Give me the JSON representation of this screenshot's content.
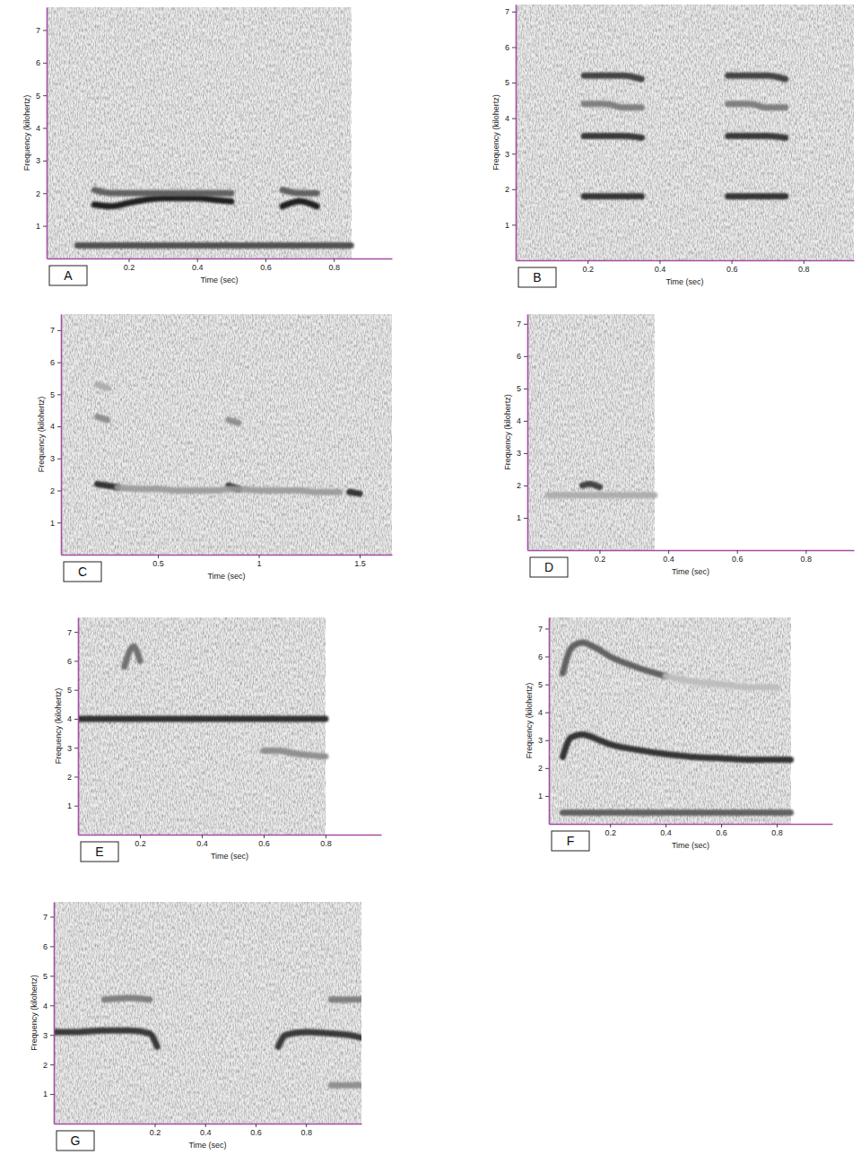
{
  "chart_data": [
    {
      "type": "line",
      "title": "A",
      "x_label": "Time (sec)",
      "y_label": "Frequency (kilohertz)",
      "x": [
        0.05,
        0.1,
        0.15,
        0.2,
        0.25,
        0.3,
        0.35,
        0.4,
        0.45,
        0.5,
        0.55,
        0.6,
        0.65,
        0.7,
        0.75,
        0.8,
        0.85
      ],
      "series": [
        {
          "color": "#111111",
          "values": [
            null,
            1.65,
            1.6,
            1.7,
            1.8,
            1.85,
            1.85,
            1.85,
            1.8,
            1.75,
            null,
            null,
            1.6,
            1.75,
            1.6,
            null,
            null
          ]
        },
        {
          "color": "#555555",
          "values": [
            null,
            2.1,
            2.0,
            2.0,
            2.0,
            2.0,
            2.0,
            2.0,
            2.0,
            2.0,
            null,
            null,
            2.1,
            2.0,
            2.0,
            null,
            null
          ]
        },
        {
          "color": "#444444",
          "values": [
            0.4,
            0.4,
            0.4,
            0.4,
            0.4,
            0.4,
            0.4,
            0.4,
            0.4,
            0.4,
            0.4,
            0.4,
            0.4,
            0.4,
            0.4,
            0.4,
            0.4
          ]
        }
      ],
      "xlim": [
        -0.04,
        0.97
      ],
      "xticks": [
        0.2,
        0.4,
        0.6,
        0.8
      ],
      "ylim": [
        0,
        7.7
      ],
      "yticks": [
        1,
        2,
        3,
        4,
        5,
        6,
        7
      ]
    },
    {
      "type": "line",
      "title": "B",
      "x_label": "Time (sec)",
      "y_label": "Frequency (kilohertz)",
      "x": [
        0.19,
        0.25,
        0.3,
        0.35,
        0.45,
        0.59,
        0.65,
        0.7,
        0.75,
        0.94
      ],
      "series": [
        {
          "color": "#222222",
          "values": [
            1.8,
            1.8,
            1.8,
            1.8,
            null,
            1.8,
            1.8,
            1.8,
            1.8,
            null
          ]
        },
        {
          "color": "#2a2a2a",
          "values": [
            3.5,
            3.5,
            3.5,
            3.45,
            null,
            3.5,
            3.5,
            3.5,
            3.45,
            null
          ]
        },
        {
          "color": "#777777",
          "values": [
            4.4,
            4.4,
            4.3,
            4.3,
            null,
            4.4,
            4.4,
            4.3,
            4.3,
            null
          ]
        },
        {
          "color": "#333333",
          "values": [
            5.2,
            5.2,
            5.2,
            5.1,
            null,
            5.2,
            5.2,
            5.2,
            5.1,
            null
          ]
        }
      ],
      "xlim": [
        0,
        0.94
      ],
      "xticks": [
        0.2,
        0.4,
        0.6,
        0.8
      ],
      "ylim": [
        0,
        7.2
      ],
      "yticks": [
        1,
        2,
        3,
        4,
        5,
        6,
        7
      ]
    },
    {
      "type": "line",
      "title": "C",
      "x_label": "Time (sec)",
      "y_label": "Frequency (kilohertz)",
      "x": [
        0.2,
        0.25,
        0.3,
        0.4,
        0.5,
        0.6,
        0.7,
        0.8,
        0.85,
        0.9,
        1.0,
        1.1,
        1.2,
        1.3,
        1.4,
        1.45,
        1.5,
        1.66
      ],
      "series": [
        {
          "color": "#222222",
          "values": [
            2.2,
            2.15,
            2.1,
            null,
            null,
            null,
            null,
            null,
            2.15,
            2.05,
            null,
            null,
            null,
            null,
            null,
            1.95,
            1.9,
            null
          ]
        },
        {
          "color": "#999999",
          "values": [
            null,
            null,
            2.1,
            2.05,
            2.05,
            2.0,
            2.0,
            2.0,
            2.05,
            2.05,
            2.0,
            2.0,
            2.0,
            1.95,
            1.95,
            null,
            null,
            null
          ]
        },
        {
          "color": "#888888",
          "values": [
            4.3,
            4.2,
            null,
            null,
            null,
            null,
            null,
            null,
            4.2,
            4.1,
            null,
            null,
            null,
            null,
            null,
            null,
            null,
            null
          ]
        },
        {
          "color": "#aaaaaa",
          "values": [
            5.3,
            5.2,
            null,
            null,
            null,
            null,
            null,
            null,
            null,
            null,
            null,
            null,
            null,
            null,
            null,
            null,
            null,
            null
          ]
        }
      ],
      "xlim": [
        0.02,
        1.66
      ],
      "xticks": [
        0.5,
        1,
        1.5
      ],
      "ylim": [
        0,
        7.5
      ],
      "yticks": [
        1,
        2,
        3,
        4,
        5,
        6,
        7
      ]
    },
    {
      "type": "line",
      "title": "D",
      "x_label": "Time (sec)",
      "y_label": "Frequency (kilohertz)",
      "x": [
        0.0,
        0.05,
        0.1,
        0.15,
        0.17,
        0.2,
        0.25,
        0.3,
        0.36
      ],
      "series": [
        {
          "color": "#333333",
          "values": [
            null,
            null,
            null,
            2.0,
            2.05,
            1.95,
            null,
            null,
            null
          ]
        },
        {
          "color": "#aaaaaa",
          "values": [
            null,
            1.7,
            1.7,
            1.7,
            1.7,
            1.7,
            1.7,
            1.7,
            1.7
          ]
        }
      ],
      "xlim": [
        -0.01,
        0.94
      ],
      "xticks": [
        0.2,
        0.4,
        0.6,
        0.8
      ],
      "ylim": [
        0,
        7.3
      ],
      "yticks": [
        1,
        2,
        3,
        4,
        5,
        6,
        7
      ]
    },
    {
      "type": "line",
      "title": "E",
      "x_label": "Time (sec)",
      "y_label": "Frequency (kilohertz)",
      "x": [
        0,
        0.1,
        0.15,
        0.18,
        0.2,
        0.25,
        0.3,
        0.4,
        0.5,
        0.6,
        0.65,
        0.7,
        0.8
      ],
      "series": [
        {
          "color": "#1f1f1f",
          "values": [
            4.0,
            4.0,
            4.0,
            4.0,
            4.0,
            4.0,
            4.0,
            4.0,
            4.0,
            4.0,
            4.0,
            4.0,
            4.0
          ]
        },
        {
          "color": "#666666",
          "values": [
            null,
            null,
            5.8,
            6.5,
            6.0,
            null,
            null,
            null,
            null,
            null,
            null,
            null,
            null
          ]
        },
        {
          "color": "#888888",
          "values": [
            null,
            null,
            null,
            null,
            null,
            null,
            null,
            null,
            null,
            2.9,
            2.9,
            2.8,
            2.7
          ]
        }
      ],
      "xlim": [
        0,
        0.98
      ],
      "xticks": [
        0.2,
        0.4,
        0.6,
        0.8
      ],
      "ylim": [
        0,
        7.5
      ],
      "yticks": [
        1,
        2,
        3,
        4,
        5,
        6,
        7
      ]
    },
    {
      "type": "line",
      "title": "F",
      "x_label": "Time (sec)",
      "y_label": "Frequency (kilohertz)",
      "x": [
        0.03,
        0.06,
        0.1,
        0.15,
        0.2,
        0.3,
        0.4,
        0.5,
        0.6,
        0.7,
        0.8,
        0.85
      ],
      "series": [
        {
          "color": "#222222",
          "values": [
            2.4,
            3.1,
            3.2,
            3.05,
            2.85,
            2.65,
            2.5,
            2.4,
            2.35,
            2.3,
            2.3,
            2.3
          ]
        },
        {
          "color": "#555555",
          "values": [
            5.4,
            6.3,
            6.5,
            6.3,
            6.0,
            5.6,
            5.3,
            null,
            null,
            null,
            null,
            null
          ]
        },
        {
          "color": "#bbbbbb",
          "values": [
            null,
            null,
            null,
            null,
            null,
            null,
            5.3,
            5.1,
            5.0,
            4.9,
            4.9,
            null
          ]
        },
        {
          "color": "#555555",
          "values": [
            0.4,
            0.4,
            0.4,
            0.4,
            0.4,
            0.4,
            0.4,
            0.4,
            0.4,
            0.4,
            0.4,
            0.4
          ]
        }
      ],
      "xlim": [
        -0.02,
        1.0
      ],
      "xticks": [
        0.2,
        0.4,
        0.6,
        0.8
      ],
      "ylim": [
        0,
        7.4
      ],
      "yticks": [
        1,
        2,
        3,
        4,
        5,
        6,
        7
      ]
    },
    {
      "type": "line",
      "title": "G",
      "x_label": "Time (sec)",
      "y_label": "Frequency (kilohertz)",
      "x": [
        -0.2,
        -0.1,
        0,
        0.1,
        0.18,
        0.21,
        0.45,
        0.69,
        0.72,
        0.8,
        0.9,
        1.0,
        1.02
      ],
      "series": [
        {
          "color": "#2a2a2a",
          "values": [
            3.1,
            3.1,
            3.15,
            3.15,
            3.05,
            2.6,
            null,
            2.6,
            3.0,
            3.1,
            3.05,
            2.95,
            2.9
          ]
        },
        {
          "color": "#777777",
          "values": [
            null,
            null,
            4.2,
            4.25,
            4.2,
            null,
            null,
            null,
            null,
            null,
            4.2,
            4.2,
            4.2
          ]
        },
        {
          "color": "#888888",
          "values": [
            null,
            null,
            null,
            null,
            null,
            null,
            null,
            null,
            null,
            null,
            1.3,
            1.3,
            1.3
          ]
        }
      ],
      "xlim": [
        -0.2,
        1.02
      ],
      "xticks": [
        0.2,
        0.4,
        0.6,
        0.8
      ],
      "ylim": [
        0,
        7.5
      ],
      "yticks": [
        1,
        2,
        3,
        4,
        5,
        6,
        7
      ]
    }
  ]
}
